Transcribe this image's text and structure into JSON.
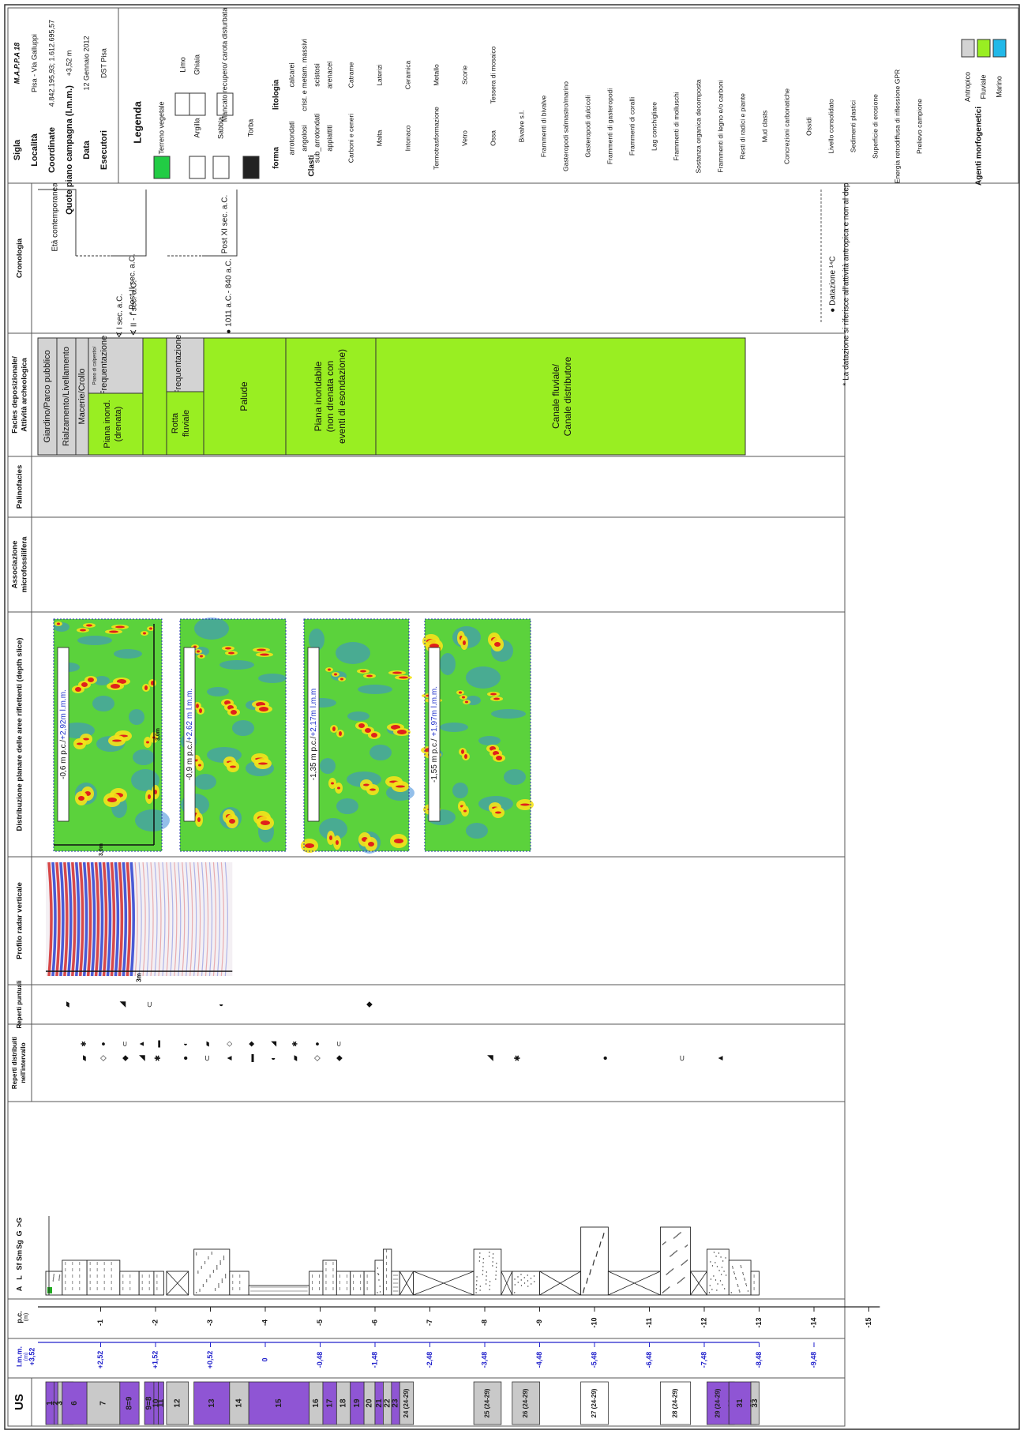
{
  "sheet": {
    "us_label": "US",
    "lmm_label": "l.m.m.",
    "lmm_unit": "(m)",
    "lmm_top": "+3,52",
    "pc_label": "p.c.",
    "pc_unit": "(m)",
    "grain_labels": [
      "A",
      "L",
      "Sf",
      "Sm",
      "Sg",
      "G",
      ">G"
    ],
    "reperti_puntuali": "Reperti puntuali",
    "reperti_distribuiti": "Reperti distribuiti nell'intervallo",
    "profilo_radar": "Profilo radar verticale",
    "profilo_scale": "3m",
    "distribuzione": "Distribuzione planare delle aree riflettenti (depth slice)",
    "associazione": "Associazione microfossilifera",
    "palinofacies": "Palinofacies",
    "facies_title": "Facies deposizionale/ Attività archeologica",
    "cronologia_title": "Cronologia"
  },
  "chart_data": {
    "type": "table",
    "pc_axis": {
      "label": "p.c. (m)",
      "ticks": [
        -1,
        -2,
        -3,
        -4,
        -5,
        -6,
        -7,
        -8,
        -9,
        -10,
        -11,
        -12,
        -13,
        -14,
        -15
      ]
    },
    "lmm_axis": {
      "label": "l.m.m. (m)",
      "ticks": [
        "+2,52",
        "+1,52",
        "+0,52",
        "0",
        "-0,48",
        "-1,48",
        "-2,48",
        "-3,48",
        "-4,48",
        "-5,48",
        "-6,48",
        "-7,48",
        "-8,48",
        "-9,48"
      ]
    },
    "us_units": [
      {
        "label": "1",
        "top": 0,
        "bottom": 0.15,
        "color": "#8f55d4"
      },
      {
        "label": "2",
        "top": 0.15,
        "bottom": 0.22,
        "color": "#8f55d4"
      },
      {
        "label": "3",
        "top": 0.22,
        "bottom": 0.3,
        "color": "#c9c9c9"
      },
      {
        "label": "4",
        "top": 0.3,
        "bottom": 0.4,
        "color": "#8f55d4"
      },
      {
        "label": "5",
        "top": 0.4,
        "bottom": 0.5,
        "color": "#8f55d4"
      },
      {
        "label": "6",
        "top": 0.3,
        "bottom": 0.75,
        "color": "#8f55d4"
      },
      {
        "label": "7",
        "top": 0.75,
        "bottom": 1.35,
        "color": "#c9c9c9"
      },
      {
        "label": "8=9",
        "top": 1.35,
        "bottom": 1.7,
        "color": "#8f55d4"
      },
      {
        "label": "9=8",
        "top": 1.8,
        "bottom": 1.97,
        "color": "#8f55d4"
      },
      {
        "label": "10",
        "top": 1.97,
        "bottom": 2.05,
        "color": "#8f55d4"
      },
      {
        "label": "11",
        "top": 2.05,
        "bottom": 2.15,
        "color": "#8f55d4"
      },
      {
        "label": "12",
        "top": 2.2,
        "bottom": 2.6,
        "color": "#c9c9c9"
      },
      {
        "label": "13",
        "top": 2.7,
        "bottom": 3.35,
        "color": "#8f55d4"
      },
      {
        "label": "14",
        "top": 3.35,
        "bottom": 3.7,
        "color": "#c9c9c9"
      },
      {
        "label": "15",
        "top": 3.7,
        "bottom": 4.8,
        "color": "#8f55d4"
      },
      {
        "label": "16",
        "top": 4.8,
        "bottom": 5.05,
        "color": "#c9c9c9"
      },
      {
        "label": "17",
        "top": 5.05,
        "bottom": 5.3,
        "color": "#8f55d4"
      },
      {
        "label": "18",
        "top": 5.3,
        "bottom": 5.55,
        "color": "#c9c9c9"
      },
      {
        "label": "19",
        "top": 5.55,
        "bottom": 5.8,
        "color": "#8f55d4"
      },
      {
        "label": "20",
        "top": 5.8,
        "bottom": 6.0,
        "color": "#c9c9c9"
      },
      {
        "label": "21",
        "top": 6.0,
        "bottom": 6.15,
        "color": "#8f55d4"
      },
      {
        "label": "22",
        "top": 6.15,
        "bottom": 6.3,
        "color": "#c9c9c9"
      },
      {
        "label": "23",
        "top": 6.3,
        "bottom": 6.45,
        "color": "#8f55d4"
      },
      {
        "label": "24 (24-29)",
        "top": 6.45,
        "bottom": 6.7,
        "color": "#c9c9c9"
      },
      {
        "label": "25 (24-29)",
        "top": 7.8,
        "bottom": 8.3,
        "color": "#c9c9c9"
      },
      {
        "label": "26 (24-29)",
        "top": 8.5,
        "bottom": 9.0,
        "color": "#c9c9c9"
      },
      {
        "label": "27 (24-29)",
        "top": 9.75,
        "bottom": 10.25,
        "color": "#ffffff"
      },
      {
        "label": "28 (24-29)",
        "top": 11.2,
        "bottom": 11.75,
        "color": "#ffffff"
      },
      {
        "label": "29 (24-29)",
        "top": 12.05,
        "bottom": 12.45,
        "color": "#8f55d4"
      },
      {
        "label": "30",
        "top": 12.45,
        "bottom": 12.55,
        "color": "#8f55d4"
      },
      {
        "label": "31",
        "top": 12.45,
        "bottom": 12.85,
        "color": "#8f55d4"
      },
      {
        "label": "32",
        "top": 12.85,
        "bottom": 12.95,
        "color": "#8f55d4"
      },
      {
        "label": "33",
        "top": 12.85,
        "bottom": 13.0,
        "color": "#c9c9c9"
      }
    ],
    "depth_slices": [
      {
        "label": "-0,6 m p.c./",
        "value": "+2,92m l.m.m."
      },
      {
        "label": "-0,9 m p.c./",
        "value": "+2,62 m l.m.m."
      },
      {
        "label": "-1,35 m p.c./",
        "value": "+2,17m l.m.m"
      },
      {
        "label": "-1,55 m p.c./",
        "value": " +1,97m l.m.m."
      }
    ],
    "slice_scale": "3,0m",
    "slice_scale_2": "3,0m",
    "facies": [
      {
        "label": "Giardino/Parco pubblico"
      },
      {
        "label": "Rialzamento/Livellamento"
      },
      {
        "label": "Macerie/Crollo"
      },
      {
        "label": "Piana di calpestio/ Frequentazione",
        "small": "Piano di calpestio/"
      },
      {
        "label": "Piana inond. (drenata)"
      },
      {
        "label": "Frequentazione"
      },
      {
        "label": "Rotta fluviale"
      },
      {
        "label": "Palude"
      },
      {
        "label": "Piana inondabile (non drenata con eventi di esondazione)"
      },
      {
        "label": "Canale fluviale/ Canale distributore"
      }
    ],
    "chronology": [
      "Età contemporanea",
      "Post II sec. a.C.",
      "I sec. a.C.",
      "II - I sec. a.C.",
      "Post XI sec. a.C.",
      "1011 a.C.- 840 a.C."
    ],
    "chronology_notes": [
      "Datazione ¹⁴C",
      "La datazione si riferisce all'attività antropica e non al deposito naturale"
    ]
  },
  "legend": {
    "title": "M.A.P.P.A 18",
    "rows": [
      {
        "k": "Sigla",
        "v": "M.A.P.P.A 18"
      },
      {
        "k": "Località",
        "v": "Pisa - Via Galluppi"
      },
      {
        "k": "Coordinate",
        "v": "4.842.195,93; 1.612.695,57"
      },
      {
        "k": "Quote piano campagna (l.m.m.)",
        "v": "+3,52 m"
      },
      {
        "k": "Data",
        "v": "12 Gennaio 2012"
      },
      {
        "k": "Esecutori",
        "v": "DST Pisa"
      }
    ],
    "legenda": "Legenda",
    "lithologies": [
      "Terreno vegetale",
      "Limo",
      "Argilla",
      "Ghiaia",
      "Sabbia",
      "Mancato recupero/ carota disturbata",
      "Torba"
    ],
    "clasti_title": "Clasti",
    "forma": "forma",
    "litologia": "litologia",
    "forma_items": [
      "arrotondati",
      "angolosi",
      "sub_arrotondati",
      "appiattiti"
    ],
    "litologia_items": [
      "calcarei",
      "crist. e metam. massivi",
      "scistosi",
      "arenacei"
    ],
    "items": [
      "Carboni e ceneri",
      "Catrame",
      "Malta",
      "Laterizi",
      "Intonaco",
      "Ceramica",
      "Termotrasformazione",
      "Metallo",
      "Vetro",
      "Scorie",
      "Ossa",
      "Tessera di mosaico",
      "Bivalve s.l.",
      "Frammenti di bivalve",
      "Gasteropodi salmastro/marino",
      "Gasteropodi dulcicoli",
      "Frammenti di gasteropodi",
      "Frammenti di coralli",
      "Lag conchigliare",
      "Frammenti di molluschi",
      "Sostanza organica decomposta",
      "Frammenti di legno e/o carboni",
      "Resti di radici e piante",
      "Mud clasts",
      "Concrezioni carbonatiche",
      "Ossidi",
      "Livello consolidato",
      "Sedimenti plastici",
      "Superficie di erosione",
      "Energia retrodiffusa di riflessione GPR",
      "Prelievo campione"
    ],
    "agenti": "Agenti morfogenetici",
    "agenti_items": [
      "Antropico",
      "Fluviale",
      "Marino"
    ],
    "agenti_colors": [
      "#d3d3d3",
      "#99ee22",
      "#22b8e8"
    ],
    "star_note": "*"
  },
  "colors": {
    "us_purple": "#8f55d4",
    "us_grey": "#c9c9c9",
    "scale_blue": "#2222cc",
    "facies_green": "#99ee22",
    "facies_grey": "#d3d3d3",
    "border": "#333333"
  }
}
